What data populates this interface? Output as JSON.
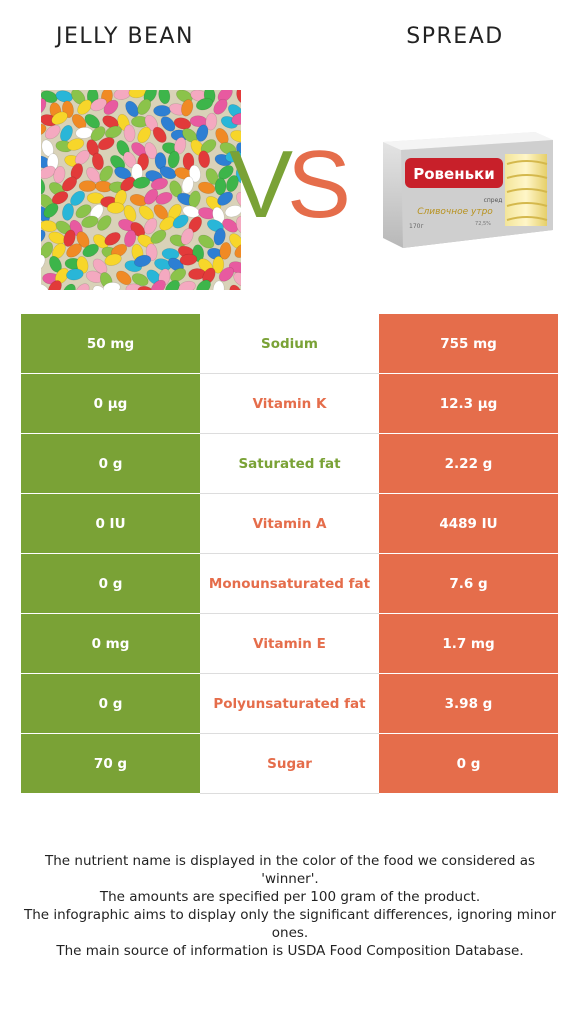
{
  "foods": {
    "left": {
      "name": "Jelly bean",
      "color": "#7aa236"
    },
    "right": {
      "name": "Spread",
      "color": "#e56d4b"
    }
  },
  "vs": {
    "v": "V",
    "s": "S"
  },
  "right_image_text": {
    "brand": "Ровеньки",
    "product": "Сливочное утро",
    "small1": "спред",
    "small2": "72,5%",
    "weight": "170г"
  },
  "rows": [
    {
      "left": "50 mg",
      "nutrient": "Sodium",
      "right": "755 mg",
      "winner": "left"
    },
    {
      "left": "0 µg",
      "nutrient": "Vitamin K",
      "right": "12.3 µg",
      "winner": "right"
    },
    {
      "left": "0 g",
      "nutrient": "Saturated fat",
      "right": "2.22 g",
      "winner": "left"
    },
    {
      "left": "0 IU",
      "nutrient": "Vitamin A",
      "right": "4489 IU",
      "winner": "right"
    },
    {
      "left": "0 g",
      "nutrient": "Monounsaturated fat",
      "right": "7.6 g",
      "winner": "right"
    },
    {
      "left": "0 mg",
      "nutrient": "Vitamin E",
      "right": "1.7 mg",
      "winner": "right"
    },
    {
      "left": "0 g",
      "nutrient": "Polyunsaturated fat",
      "right": "3.98 g",
      "winner": "right"
    },
    {
      "left": "70 g",
      "nutrient": "Sugar",
      "right": "0 g",
      "winner": "right"
    }
  ],
  "footnote": [
    "The nutrient name is displayed in the color of the food we considered as 'winner'.",
    "The amounts are specified per 100 gram of the product.",
    "The infographic aims to display only the significant differences, ignoring minor ones.",
    "The main source of information is USDA Food Composition Database."
  ]
}
